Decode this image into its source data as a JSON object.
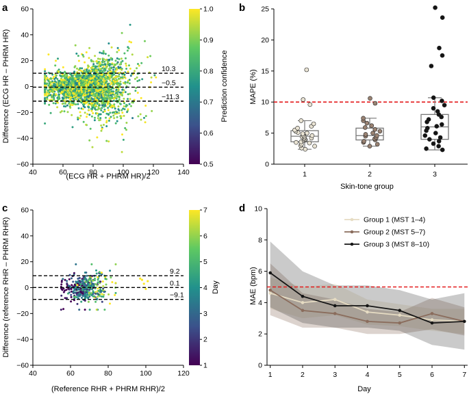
{
  "panel_labels": {
    "a": "a",
    "b": "b",
    "c": "c",
    "d": "d"
  },
  "chart_data": [
    {
      "id": "a",
      "type": "scatter",
      "xlabel": "(ECG HR + PHRM HR)/2",
      "ylabel": "Difference (ECG HR – PHRM HR)",
      "xlim": [
        40,
        140
      ],
      "ylim": [
        -60,
        60
      ],
      "xticks": [
        "40",
        "60",
        "80",
        "100",
        "120",
        "140"
      ],
      "yticks": [
        "−60",
        "−40",
        "−20",
        "0",
        "20",
        "40",
        "60"
      ],
      "reference_lines": [
        {
          "y": 10.3,
          "label": "10.3"
        },
        {
          "y": -0.5,
          "label": "−0.5"
        },
        {
          "y": -11.3,
          "label": "−11.3"
        }
      ],
      "colorbar": {
        "label": "Prediction confidence",
        "range": [
          0.5,
          1.0
        ],
        "ticks": [
          "0.5",
          "0.6",
          "0.7",
          "0.8",
          "0.9",
          "1.0"
        ]
      },
      "point_cloud": {
        "n": 2600,
        "x_mean": 76,
        "x_sd": 14,
        "x_range": [
          48,
          128
        ],
        "diff_mean": -0.5,
        "diff_sd": 5.6,
        "diff_range": [
          -52,
          50
        ],
        "confidence_mean": 0.8
      }
    },
    {
      "id": "b",
      "type": "box",
      "xlabel": "Skin-tone group",
      "ylabel": "MAPE (%)",
      "ylim": [
        0,
        25
      ],
      "xticks": [
        "1",
        "2",
        "3"
      ],
      "yticks": [
        "0",
        "5",
        "10",
        "15",
        "20",
        "25"
      ],
      "threshold": 10,
      "groups": [
        {
          "name": "1",
          "color": "#e9e3d3",
          "q1": 3.6,
          "median": 4.5,
          "q3": 5.4,
          "whisker_low": 2.4,
          "whisker_high": 7.0,
          "points": [
            2.4,
            2.6,
            2.9,
            3.0,
            3.2,
            3.4,
            3.5,
            3.6,
            3.8,
            3.9,
            4.0,
            4.1,
            4.2,
            4.3,
            4.4,
            4.5,
            4.6,
            4.7,
            4.9,
            5.0,
            5.1,
            5.3,
            5.5,
            5.8,
            6.1,
            6.5,
            7.0,
            9.6,
            10.4,
            15.2
          ]
        },
        {
          "name": "2",
          "color": "#9a8373",
          "q1": 3.9,
          "median": 4.6,
          "q3": 5.8,
          "whisker_low": 2.9,
          "whisker_high": 7.4,
          "points": [
            2.9,
            3.2,
            3.5,
            3.7,
            3.9,
            4.1,
            4.3,
            4.5,
            4.6,
            4.8,
            5.0,
            5.3,
            5.6,
            5.9,
            6.2,
            6.6,
            7.0,
            7.4,
            9.8,
            10.6
          ]
        },
        {
          "name": "3",
          "color": "#141414",
          "q1": 4.0,
          "median": 6.0,
          "q3": 8.0,
          "whisker_low": 2.3,
          "whisker_high": 10.7,
          "points": [
            2.3,
            2.5,
            2.9,
            3.3,
            3.7,
            4.0,
            4.3,
            4.6,
            5.0,
            5.4,
            5.8,
            6.1,
            6.4,
            6.8,
            7.2,
            7.6,
            8.0,
            8.5,
            9.0,
            9.5,
            10.2,
            10.7,
            15.8,
            17.5,
            18.7,
            23.6,
            25.2
          ]
        }
      ]
    },
    {
      "id": "c",
      "type": "scatter",
      "xlabel": "(Reference RHR + PHRM RHR)/2",
      "ylabel": "Difference (reference RHR – PHRM RHR)",
      "xlim": [
        40,
        120
      ],
      "ylim": [
        -60,
        60
      ],
      "xticks": [
        "40",
        "60",
        "80",
        "100",
        "120"
      ],
      "yticks": [
        "−60",
        "−40",
        "−20",
        "0",
        "20",
        "40",
        "60"
      ],
      "reference_lines": [
        {
          "y": 9.2,
          "label": "9.2"
        },
        {
          "y": 0.1,
          "label": "0.1"
        },
        {
          "y": -9.1,
          "label": "−9.1"
        }
      ],
      "colorbar": {
        "label": "Day",
        "range": [
          1,
          7
        ],
        "ticks": [
          "1",
          "2",
          "3",
          "4",
          "5",
          "6",
          "7"
        ]
      },
      "point_cloud": {
        "n": 420,
        "x_mean": 68,
        "x_sd": 6,
        "x_range": [
          55,
          84
        ],
        "diff_mean": 0.1,
        "diff_sd": 4.6,
        "diff_range": [
          -17,
          18
        ],
        "outliers": [
          [
            97,
            7
          ],
          [
            98,
            6
          ],
          [
            99,
            3
          ],
          [
            100,
            -1
          ],
          [
            101,
            5
          ]
        ]
      }
    },
    {
      "id": "d",
      "type": "line",
      "xlabel": "Day",
      "ylabel": "MAE (bpm)",
      "xlim": [
        0.9,
        7.1
      ],
      "ylim": [
        0,
        10
      ],
      "xticks": [
        "1",
        "2",
        "3",
        "4",
        "5",
        "6",
        "7"
      ],
      "yticks": [
        "0",
        "2",
        "4",
        "6",
        "8",
        "10"
      ],
      "threshold": 5,
      "x": [
        1,
        2,
        3,
        4,
        5,
        6,
        7
      ],
      "series": [
        {
          "name": "Group 1 (MST 1–4)",
          "color": "#e6dcc3",
          "values": [
            4.6,
            4.0,
            4.2,
            3.4,
            3.2,
            2.9,
            2.8
          ],
          "lower": [
            3.6,
            3.0,
            3.2,
            2.6,
            2.5,
            2.2,
            2.0
          ],
          "upper": [
            5.6,
            5.0,
            5.2,
            4.2,
            3.9,
            3.6,
            3.6
          ]
        },
        {
          "name": "Group 2 (MST 5–7)",
          "color": "#8a6c5c",
          "values": [
            4.8,
            3.5,
            3.3,
            2.8,
            2.7,
            3.3,
            2.8
          ],
          "lower": [
            3.2,
            2.4,
            2.4,
            2.0,
            2.0,
            2.3,
            1.9
          ],
          "upper": [
            6.5,
            4.6,
            4.2,
            3.6,
            3.4,
            4.3,
            3.7
          ]
        },
        {
          "name": "Group 3 (MST 8–10)",
          "color": "#151515",
          "values": [
            5.9,
            4.4,
            3.8,
            3.8,
            3.5,
            2.7,
            2.8
          ],
          "lower": [
            3.7,
            2.7,
            2.4,
            2.4,
            2.2,
            1.3,
            1.0
          ],
          "upper": [
            7.9,
            6.0,
            5.1,
            5.1,
            4.8,
            4.2,
            4.6
          ]
        }
      ]
    }
  ]
}
